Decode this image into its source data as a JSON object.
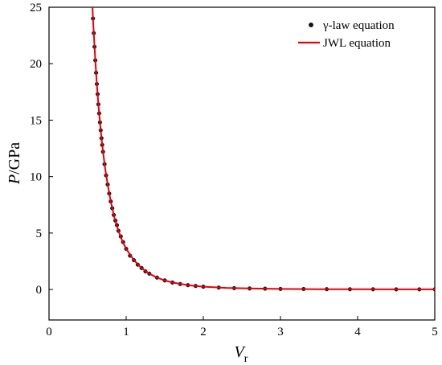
{
  "chart_data": {
    "type": "scatter",
    "xlabel": "V",
    "xlabel_sub": "r",
    "ylabel_italic": "P",
    "ylabel_rest": "/GPa",
    "xlim": [
      0,
      5
    ],
    "ylim": [
      -2.7,
      25
    ],
    "xticks": [
      0,
      1,
      2,
      3,
      4,
      5
    ],
    "yticks": [
      0,
      5,
      10,
      15,
      20,
      25
    ],
    "tick_labels_x": [
      "0",
      "1",
      "2",
      "3",
      "4",
      "5"
    ],
    "tick_labels_y": [
      "0",
      "5",
      "10",
      "15",
      "20",
      "25"
    ],
    "grid": false,
    "legend_position": "top-right",
    "series": [
      {
        "name": "γ-law equation",
        "kind": "points",
        "color": "#000000",
        "x": [
          0.57,
          0.58,
          0.59,
          0.6,
          0.61,
          0.62,
          0.63,
          0.64,
          0.65,
          0.66,
          0.67,
          0.68,
          0.69,
          0.7,
          0.72,
          0.74,
          0.76,
          0.78,
          0.8,
          0.82,
          0.84,
          0.86,
          0.88,
          0.9,
          0.93,
          0.96,
          1.0,
          1.05,
          1.1,
          1.15,
          1.2,
          1.25,
          1.3,
          1.4,
          1.5,
          1.6,
          1.7,
          1.8,
          1.9,
          2.0,
          2.2,
          2.4,
          2.6,
          2.8,
          3.0,
          3.3,
          3.6,
          3.9,
          4.2,
          4.5,
          4.8,
          5.0
        ],
        "y": [
          24.0,
          22.7,
          21.5,
          20.3,
          19.2,
          18.2,
          17.3,
          16.4,
          15.6,
          14.8,
          14.1,
          13.4,
          12.8,
          12.2,
          11.1,
          10.1,
          9.3,
          8.5,
          7.8,
          7.2,
          6.6,
          6.1,
          5.7,
          5.2,
          4.7,
          4.2,
          3.6,
          3.0,
          2.6,
          2.2,
          1.9,
          1.6,
          1.4,
          1.05,
          0.8,
          0.62,
          0.48,
          0.38,
          0.31,
          0.25,
          0.17,
          0.12,
          0.09,
          0.07,
          0.05,
          0.04,
          0.03,
          0.02,
          0.02,
          0.01,
          0.01,
          0.01
        ]
      },
      {
        "name": "JWL equation",
        "kind": "line",
        "color": "#e8000b",
        "x": [
          0.55,
          0.56,
          0.57,
          0.58,
          0.6,
          0.62,
          0.64,
          0.66,
          0.68,
          0.7,
          0.73,
          0.76,
          0.8,
          0.85,
          0.9,
          0.95,
          1.0,
          1.1,
          1.2,
          1.3,
          1.4,
          1.5,
          1.6,
          1.8,
          2.0,
          2.3,
          2.6,
          3.0,
          3.5,
          4.0,
          4.5,
          5.0
        ],
        "y": [
          27.0,
          25.5,
          24.0,
          22.7,
          20.3,
          18.2,
          16.4,
          14.8,
          13.4,
          12.2,
          10.6,
          9.3,
          7.8,
          6.3,
          5.2,
          4.3,
          3.6,
          2.6,
          1.9,
          1.4,
          1.05,
          0.8,
          0.62,
          0.38,
          0.25,
          0.14,
          0.09,
          0.05,
          0.03,
          0.02,
          0.01,
          0.01
        ]
      }
    ]
  }
}
